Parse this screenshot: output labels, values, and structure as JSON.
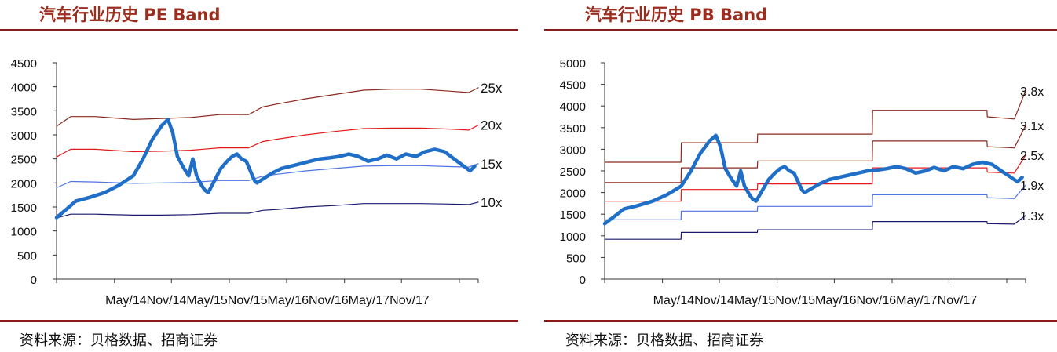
{
  "charts": [
    {
      "title": "汽车行业历史 PE Band",
      "source": "资料来源：贝格数据、招商证券",
      "chart_data": {
        "type": "line",
        "ylim": [
          0,
          4500
        ],
        "yticks": [
          0,
          500,
          1000,
          1500,
          2000,
          2500,
          3000,
          3500,
          4000,
          4500
        ],
        "xlim": [
          "2014-05-01",
          "2017-12-31"
        ],
        "xtick_labels": [
          "May/14",
          "Nov/14",
          "May/15",
          "Nov/15",
          "May/16",
          "Nov/16",
          "May/17",
          "Nov/17"
        ],
        "xtick_dates": [
          "2014-05-01",
          "2014-11-01",
          "2015-05-01",
          "2015-11-01",
          "2016-05-01",
          "2016-11-01",
          "2017-05-01",
          "2017-11-01"
        ],
        "grid": false,
        "legend": "none",
        "series": [
          {
            "name": "25x",
            "color": "#8b2a1f",
            "width": 1.2,
            "x": [
              "2014-05-01",
              "2014-06-15",
              "2014-09-01",
              "2014-12-31",
              "2015-04-01",
              "2015-07-01",
              "2015-10-01",
              "2016-01-01",
              "2016-02-15",
              "2016-04-01",
              "2016-07-01",
              "2016-10-01",
              "2017-01-01",
              "2017-04-01",
              "2017-07-01",
              "2017-10-01",
              "2017-12-01",
              "2017-12-31"
            ],
            "y": [
              3180,
              3380,
              3380,
              3320,
              3340,
              3360,
              3420,
              3420,
              3580,
              3640,
              3750,
              3840,
              3930,
              3950,
              3950,
              3910,
              3880,
              3980
            ]
          },
          {
            "name": "20x",
            "color": "#e31a1a",
            "width": 1.2,
            "x": [
              "2014-05-01",
              "2014-06-15",
              "2014-09-01",
              "2014-12-31",
              "2015-04-01",
              "2015-07-01",
              "2015-10-01",
              "2016-01-01",
              "2016-02-15",
              "2016-04-01",
              "2016-07-01",
              "2016-10-01",
              "2017-01-01",
              "2017-04-01",
              "2017-07-01",
              "2017-10-01",
              "2017-12-01",
              "2017-12-31"
            ],
            "y": [
              2540,
              2700,
              2700,
              2650,
              2660,
              2680,
              2730,
              2730,
              2860,
              2910,
              3000,
              3070,
              3130,
              3140,
              3140,
              3120,
              3100,
              3200
            ]
          },
          {
            "name": "15x",
            "color": "#4f74e3",
            "width": 1.2,
            "x": [
              "2014-05-01",
              "2014-06-15",
              "2014-09-01",
              "2014-12-31",
              "2015-04-01",
              "2015-07-01",
              "2015-10-01",
              "2016-01-01",
              "2016-02-15",
              "2016-04-01",
              "2016-07-01",
              "2016-10-01",
              "2017-01-01",
              "2017-04-01",
              "2017-07-01",
              "2017-10-01",
              "2017-12-01",
              "2017-12-31"
            ],
            "y": [
              1900,
              2030,
              2020,
              1990,
              2000,
              2010,
              2050,
              2050,
              2140,
              2180,
              2250,
              2300,
              2350,
              2360,
              2360,
              2340,
              2330,
              2400
            ]
          },
          {
            "name": "10x",
            "color": "#1a1a6e",
            "width": 1.2,
            "x": [
              "2014-05-01",
              "2014-06-15",
              "2014-09-01",
              "2014-12-31",
              "2015-04-01",
              "2015-07-01",
              "2015-10-01",
              "2016-01-01",
              "2016-02-15",
              "2016-04-01",
              "2016-07-01",
              "2016-10-01",
              "2017-01-01",
              "2017-04-01",
              "2017-07-01",
              "2017-10-01",
              "2017-12-01",
              "2017-12-31"
            ],
            "y": [
              1270,
              1350,
              1350,
              1330,
              1330,
              1340,
              1370,
              1370,
              1430,
              1450,
              1500,
              1530,
              1570,
              1570,
              1570,
              1560,
              1550,
              1600
            ]
          },
          {
            "name": "",
            "color": "#1f6fc8",
            "width": 4.5,
            "x": [
              "2014-05-01",
              "2014-06-01",
              "2014-07-01",
              "2014-08-15",
              "2014-10-01",
              "2014-11-15",
              "2014-12-31",
              "2015-01-31",
              "2015-03-01",
              "2015-04-01",
              "2015-04-20",
              "2015-05-05",
              "2015-05-20",
              "2015-06-10",
              "2015-06-25",
              "2015-07-08",
              "2015-07-20",
              "2015-08-05",
              "2015-08-15",
              "2015-08-26",
              "2015-09-15",
              "2015-10-05",
              "2015-10-25",
              "2015-11-10",
              "2015-11-25",
              "2015-12-10",
              "2015-12-25",
              "2016-01-10",
              "2016-01-20",
              "2016-01-28",
              "2016-02-20",
              "2016-03-15",
              "2016-04-15",
              "2016-05-15",
              "2016-06-15",
              "2016-07-15",
              "2016-08-15",
              "2016-09-15",
              "2016-10-15",
              "2016-11-15",
              "2016-12-15",
              "2017-01-15",
              "2017-02-15",
              "2017-03-15",
              "2017-04-15",
              "2017-05-15",
              "2017-06-15",
              "2017-07-15",
              "2017-08-15",
              "2017-09-15",
              "2017-10-05",
              "2017-10-25",
              "2017-11-15",
              "2017-12-05",
              "2017-12-20"
            ],
            "y": [
              1280,
              1450,
              1620,
              1700,
              1800,
              1950,
              2150,
              2500,
              2900,
              3200,
              3320,
              3050,
              2550,
              2300,
              2150,
              2500,
              2150,
              1950,
              1850,
              1800,
              2050,
              2300,
              2450,
              2550,
              2600,
              2500,
              2450,
              2200,
              2050,
              2000,
              2100,
              2200,
              2300,
              2350,
              2400,
              2450,
              2500,
              2520,
              2550,
              2600,
              2550,
              2450,
              2500,
              2580,
              2500,
              2600,
              2550,
              2650,
              2700,
              2650,
              2550,
              2450,
              2350,
              2250,
              2350
            ]
          }
        ],
        "annotations": [
          "25x",
          "20x",
          "15x",
          "10x"
        ]
      }
    },
    {
      "title": "汽车行业历史 PB Band",
      "source": "资料来源：贝格数据、招商证券",
      "chart_data": {
        "type": "line",
        "ylim": [
          0,
          5000
        ],
        "yticks": [
          0,
          500,
          1000,
          1500,
          2000,
          2500,
          3000,
          3500,
          4000,
          4500,
          5000
        ],
        "xlim": [
          "2014-05-01",
          "2017-12-31"
        ],
        "xtick_labels": [
          "May/14",
          "Nov/14",
          "May/15",
          "Nov/15",
          "May/16",
          "Nov/16",
          "May/17",
          "Nov/17"
        ],
        "xtick_dates": [
          "2014-05-01",
          "2014-11-01",
          "2015-05-01",
          "2015-11-01",
          "2016-05-01",
          "2016-11-01",
          "2017-05-01",
          "2017-11-01"
        ],
        "grid": false,
        "legend": "none",
        "series": [
          {
            "name": "3.8x",
            "color": "#8b2a1f",
            "width": 1.2,
            "x": [
              "2014-05-01",
              "2014-12-30",
              "2014-12-31",
              "2015-08-30",
              "2015-08-31",
              "2016-08-30",
              "2016-08-31",
              "2017-08-30",
              "2017-08-31",
              "2017-11-25",
              "2017-12-31"
            ],
            "y": [
              2700,
              2700,
              3150,
              3150,
              3350,
              3350,
              3900,
              3900,
              3750,
              3700,
              4350
            ]
          },
          {
            "name": "3.1x",
            "color": "#8b2a1f",
            "width": 1.2,
            "x": [
              "2014-05-01",
              "2014-12-30",
              "2014-12-31",
              "2015-08-30",
              "2015-08-31",
              "2016-08-30",
              "2016-08-31",
              "2017-08-30",
              "2017-08-31",
              "2017-11-25",
              "2017-12-31"
            ],
            "y": [
              2230,
              2230,
              2570,
              2570,
              2730,
              2730,
              3190,
              3190,
              3060,
              3030,
              3550
            ]
          },
          {
            "name": "2.5x",
            "color": "#e31a1a",
            "width": 1.2,
            "x": [
              "2014-05-01",
              "2014-12-30",
              "2014-12-31",
              "2015-08-30",
              "2015-08-31",
              "2016-08-30",
              "2016-08-31",
              "2017-08-30",
              "2017-08-31",
              "2017-11-25",
              "2017-12-31"
            ],
            "y": [
              1800,
              1800,
              2070,
              2070,
              2200,
              2200,
              2570,
              2570,
              2470,
              2450,
              2860
            ]
          },
          {
            "name": "1.9x",
            "color": "#4f74e3",
            "width": 1.2,
            "x": [
              "2014-05-01",
              "2014-12-30",
              "2014-12-31",
              "2015-08-30",
              "2015-08-31",
              "2016-08-30",
              "2016-08-31",
              "2017-08-30",
              "2017-08-31",
              "2017-11-25",
              "2017-12-31"
            ],
            "y": [
              1370,
              1370,
              1570,
              1570,
              1680,
              1680,
              1950,
              1950,
              1880,
              1860,
              2170
            ]
          },
          {
            "name": "1.3x",
            "color": "#1a1a6e",
            "width": 1.2,
            "x": [
              "2014-05-01",
              "2014-12-30",
              "2014-12-31",
              "2015-08-30",
              "2015-08-31",
              "2016-08-30",
              "2016-08-31",
              "2017-08-30",
              "2017-08-31",
              "2017-11-25",
              "2017-12-31"
            ],
            "y": [
              920,
              920,
              1080,
              1080,
              1140,
              1140,
              1330,
              1330,
              1280,
              1270,
              1470
            ]
          },
          {
            "name": "",
            "color": "#1f6fc8",
            "width": 4.5,
            "x": [
              "2014-05-01",
              "2014-06-01",
              "2014-07-01",
              "2014-08-15",
              "2014-10-01",
              "2014-11-15",
              "2014-12-31",
              "2015-01-31",
              "2015-03-01",
              "2015-04-01",
              "2015-04-20",
              "2015-05-05",
              "2015-05-20",
              "2015-06-10",
              "2015-06-25",
              "2015-07-08",
              "2015-07-20",
              "2015-08-05",
              "2015-08-15",
              "2015-08-26",
              "2015-09-15",
              "2015-10-05",
              "2015-10-25",
              "2015-11-10",
              "2015-11-25",
              "2015-12-10",
              "2015-12-25",
              "2016-01-10",
              "2016-01-20",
              "2016-01-28",
              "2016-02-20",
              "2016-03-15",
              "2016-04-15",
              "2016-05-15",
              "2016-06-15",
              "2016-07-15",
              "2016-08-15",
              "2016-09-15",
              "2016-10-15",
              "2016-11-15",
              "2016-12-15",
              "2017-01-15",
              "2017-02-15",
              "2017-03-15",
              "2017-04-15",
              "2017-05-15",
              "2017-06-15",
              "2017-07-15",
              "2017-08-15",
              "2017-09-15",
              "2017-10-05",
              "2017-10-25",
              "2017-11-15",
              "2017-12-05",
              "2017-12-20"
            ],
            "y": [
              1280,
              1450,
              1620,
              1700,
              1800,
              1950,
              2150,
              2500,
              2900,
              3200,
              3320,
              3050,
              2550,
              2300,
              2150,
              2500,
              2150,
              1950,
              1850,
              1800,
              2050,
              2300,
              2450,
              2550,
              2600,
              2500,
              2450,
              2200,
              2050,
              2000,
              2100,
              2200,
              2300,
              2350,
              2400,
              2450,
              2500,
              2520,
              2550,
              2600,
              2550,
              2450,
              2500,
              2580,
              2500,
              2600,
              2550,
              2650,
              2700,
              2650,
              2550,
              2450,
              2350,
              2250,
              2350
            ]
          }
        ],
        "annotations": [
          "3.8x",
          "3.1x",
          "2.5x",
          "1.9x",
          "1.3x"
        ]
      }
    }
  ]
}
